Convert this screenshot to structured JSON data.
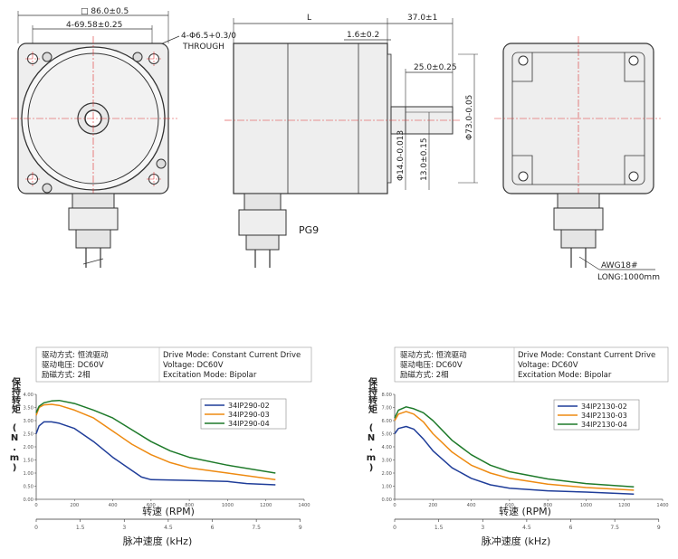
{
  "drawing": {
    "front": {
      "square": "□ 86.0±0.5",
      "hole_pitch": "4-69.58±0.25",
      "holes": "4-Φ6.5+0.3/0",
      "through": "THROUGH"
    },
    "side": {
      "length": "L",
      "flange": "1.6±0.2",
      "shaft_length": "37.0±1",
      "key_length": "25.0±0.25",
      "shaft_dia": "Φ14.0-0.013",
      "flat": "13.0±0.15",
      "pilot_dia": "Φ73.0-0.05",
      "gland": "PG9"
    },
    "rear": {
      "wire": "AWG18#",
      "wire_length": "LONG:1000mm"
    }
  },
  "specs_cn": {
    "drive_mode": "驱动方式: 恒流驱动",
    "voltage": "驱动电压: DC60V",
    "excitation": "励磁方式: 2相"
  },
  "specs_en": {
    "drive_mode": "Drive Mode: Constant Current Drive",
    "voltage": "Voltage: DC60V",
    "excitation": "Excitation Mode: Bipolar"
  },
  "colors": {
    "blue": "#1f3d99",
    "orange": "#ee8a11",
    "green": "#1e7a2a"
  },
  "chart_data": [
    {
      "type": "line",
      "y_label": "保持转矩 (N.m)",
      "xlabel": "转速 (RPM)",
      "x2label": "脉冲速度 (kHz)",
      "xlim": [
        0,
        1400
      ],
      "ylim": [
        0,
        4.0
      ],
      "x_ticks": [
        "0",
        "200",
        "400",
        "600",
        "800",
        "1000",
        "1200",
        "1400"
      ],
      "y_ticks": [
        "0.00",
        "0.50",
        "1.00",
        "1.50",
        "2.00",
        "2.50",
        "3.00",
        "3.50",
        "4.00"
      ],
      "x2_ticks": [
        "0",
        "1.5",
        "3",
        "4.5",
        "6",
        "7.5",
        "9"
      ],
      "series": [
        {
          "name": "34IP290-02",
          "color": "#1f3d99",
          "x": [
            0,
            15,
            40,
            80,
            120,
            200,
            300,
            400,
            500,
            550,
            600,
            800,
            1000,
            1100,
            1250
          ],
          "y": [
            2.5,
            2.8,
            2.95,
            2.95,
            2.9,
            2.7,
            2.2,
            1.6,
            1.1,
            0.85,
            0.75,
            0.72,
            0.68,
            0.6,
            0.55
          ]
        },
        {
          "name": "34IP290-03",
          "color": "#ee8a11",
          "x": [
            0,
            15,
            40,
            80,
            120,
            200,
            300,
            400,
            500,
            600,
            700,
            800,
            1000,
            1250
          ],
          "y": [
            3.2,
            3.5,
            3.6,
            3.62,
            3.58,
            3.4,
            3.1,
            2.6,
            2.1,
            1.7,
            1.4,
            1.2,
            1.0,
            0.75
          ]
        },
        {
          "name": "34IP290-04",
          "color": "#1e7a2a",
          "x": [
            0,
            15,
            40,
            80,
            120,
            200,
            300,
            400,
            500,
            600,
            700,
            800,
            1000,
            1250
          ],
          "y": [
            3.3,
            3.55,
            3.68,
            3.75,
            3.77,
            3.65,
            3.4,
            3.1,
            2.65,
            2.2,
            1.85,
            1.6,
            1.3,
            1.0
          ]
        }
      ]
    },
    {
      "type": "line",
      "y_label": "保持转矩 (N.m)",
      "xlabel": "转速 (RPM)",
      "x2label": "脉冲速度 (kHz)",
      "xlim": [
        0,
        1400
      ],
      "ylim": [
        0,
        8.0
      ],
      "x_ticks": [
        "0",
        "200",
        "400",
        "600",
        "800",
        "1000",
        "1200",
        "1400"
      ],
      "y_ticks": [
        "0.00",
        "1.00",
        "2.00",
        "3.00",
        "4.00",
        "5.00",
        "6.00",
        "7.00",
        "8.00"
      ],
      "x2_ticks": [
        "0",
        "1.5",
        "3",
        "4.5",
        "6",
        "7.5",
        "9"
      ],
      "series": [
        {
          "name": "34IP2130-02",
          "color": "#1f3d99",
          "x": [
            0,
            20,
            60,
            100,
            150,
            200,
            300,
            400,
            500,
            600,
            800,
            1000,
            1250
          ],
          "y": [
            5.0,
            5.4,
            5.55,
            5.35,
            4.6,
            3.7,
            2.4,
            1.6,
            1.1,
            0.85,
            0.65,
            0.55,
            0.4
          ]
        },
        {
          "name": "34IP2130-03",
          "color": "#ee8a11",
          "x": [
            0,
            20,
            60,
            100,
            150,
            200,
            300,
            400,
            500,
            600,
            800,
            1000,
            1250
          ],
          "y": [
            6.0,
            6.5,
            6.7,
            6.5,
            5.9,
            5.0,
            3.6,
            2.6,
            2.0,
            1.6,
            1.15,
            0.9,
            0.7
          ]
        },
        {
          "name": "34IP2130-04",
          "color": "#1e7a2a",
          "x": [
            0,
            20,
            60,
            100,
            150,
            200,
            300,
            400,
            500,
            600,
            800,
            1000,
            1250
          ],
          "y": [
            6.2,
            6.8,
            7.05,
            6.9,
            6.6,
            6.0,
            4.5,
            3.4,
            2.6,
            2.1,
            1.55,
            1.2,
            0.95
          ]
        }
      ]
    }
  ]
}
